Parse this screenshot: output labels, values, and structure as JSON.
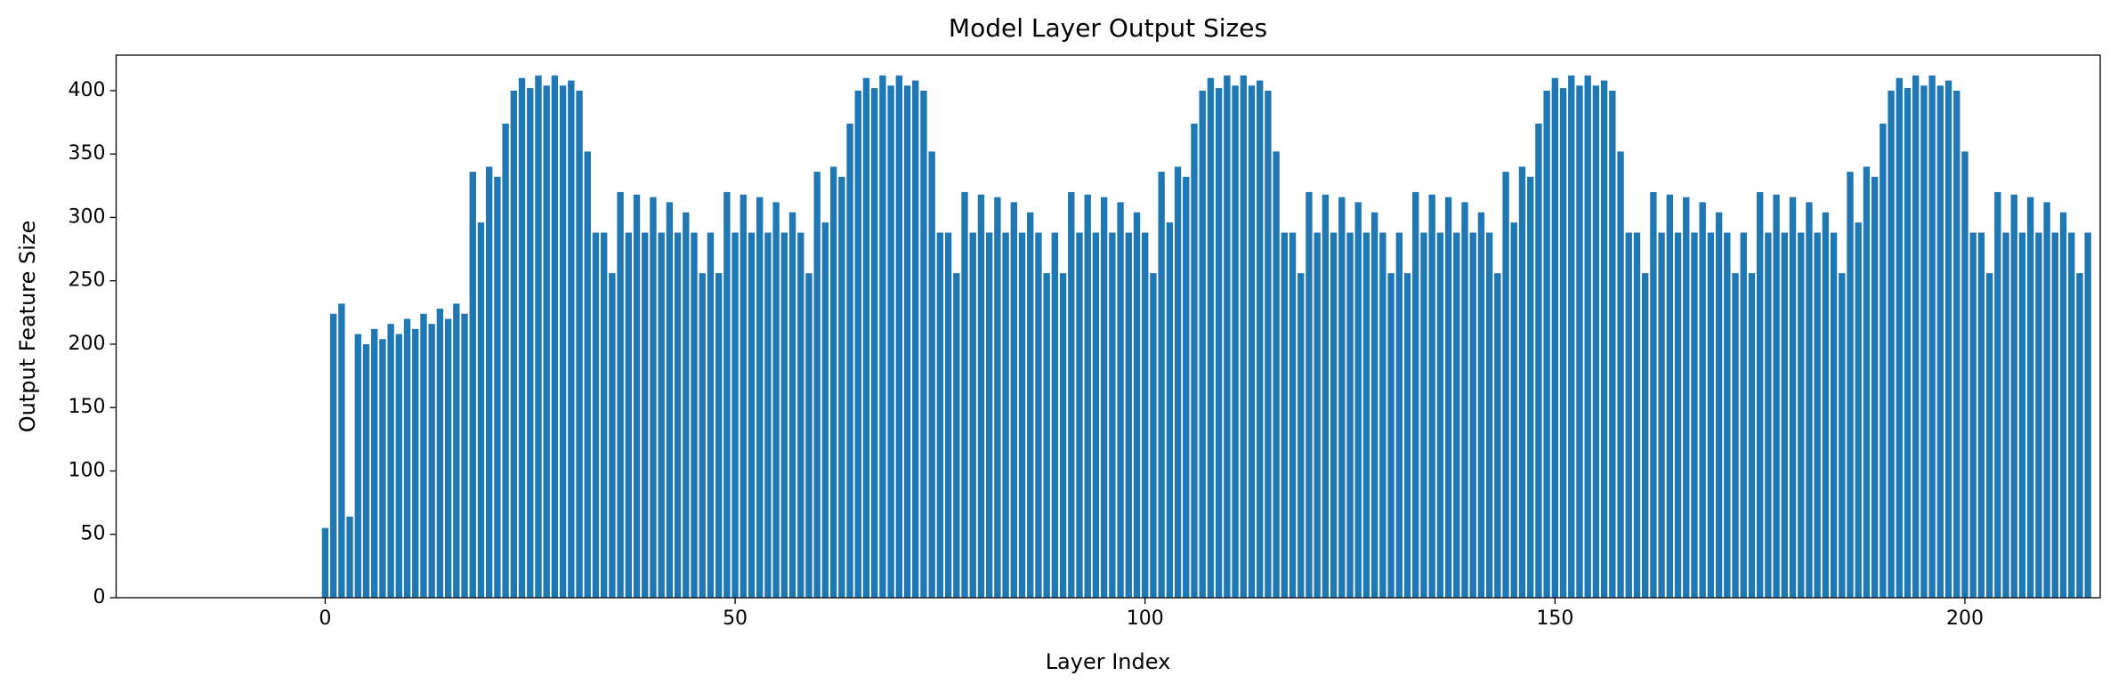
{
  "chart_data": {
    "type": "bar",
    "title": "Model Layer Output Sizes",
    "x_label": "Layer Index",
    "y_label": "Output Feature Size",
    "color": "#1f77b4",
    "x": [
      0,
      1,
      2,
      3,
      4,
      5,
      6,
      7,
      8,
      9,
      10,
      11,
      12,
      13,
      14,
      15,
      16,
      17,
      18,
      19,
      20,
      21,
      22,
      23,
      24,
      25,
      26,
      27,
      28,
      29,
      30,
      31,
      32,
      33,
      34,
      35,
      36,
      37,
      38,
      39,
      40,
      41,
      42,
      43,
      44,
      45,
      46,
      47,
      48,
      49,
      50,
      51,
      52,
      53,
      54,
      55,
      56,
      57,
      58,
      59,
      60,
      61,
      62,
      63,
      64,
      65,
      66,
      67,
      68,
      69,
      70,
      71,
      72,
      73,
      74,
      75,
      76,
      77,
      78,
      79,
      80,
      81,
      82,
      83,
      84,
      85,
      86,
      87,
      88,
      89,
      90,
      91,
      92,
      93,
      94,
      95,
      96,
      97,
      98,
      99,
      100,
      101,
      102,
      103,
      104,
      105,
      106,
      107,
      108,
      109,
      110,
      111,
      112,
      113,
      114,
      115,
      116,
      117,
      118,
      119,
      120,
      121,
      122,
      123,
      124,
      125,
      126,
      127,
      128,
      129,
      130,
      131,
      132,
      133,
      134,
      135,
      136,
      137,
      138,
      139,
      140,
      141,
      142,
      143,
      144,
      145,
      146,
      147,
      148,
      149,
      150,
      151,
      152,
      153,
      154,
      155,
      156,
      157,
      158,
      159,
      160,
      161,
      162,
      163,
      164,
      165,
      166,
      167,
      168,
      169,
      170,
      171,
      172,
      173,
      174,
      175,
      176,
      177,
      178,
      179,
      180,
      181,
      182,
      183,
      184,
      185,
      186,
      187,
      188,
      189,
      190,
      191,
      192,
      193,
      194,
      195,
      196,
      197,
      198,
      199,
      200,
      201,
      202,
      203,
      204,
      205,
      206,
      207,
      208,
      209,
      210,
      211,
      212,
      213,
      214,
      215
    ],
    "values": [
      55,
      224,
      232,
      64,
      208,
      200,
      212,
      204,
      216,
      208,
      220,
      212,
      224,
      216,
      228,
      220,
      232,
      224,
      336,
      296,
      340,
      332,
      374,
      400,
      410,
      402,
      412,
      404,
      412,
      404,
      408,
      400,
      352,
      288,
      288,
      256,
      320,
      288,
      318,
      288,
      316,
      288,
      312,
      288,
      304,
      288,
      256,
      288,
      256,
      320,
      288,
      318,
      288,
      316,
      288,
      312,
      288,
      304,
      288,
      256,
      336,
      296,
      340,
      332,
      374,
      400,
      410,
      402,
      412,
      404,
      412,
      404,
      408,
      400,
      352,
      288,
      288,
      256,
      320,
      288,
      318,
      288,
      316,
      288,
      312,
      288,
      304,
      288,
      256,
      288,
      256,
      320,
      288,
      318,
      288,
      316,
      288,
      312,
      288,
      304,
      288,
      256,
      336,
      296,
      340,
      332,
      374,
      400,
      410,
      402,
      412,
      404,
      412,
      404,
      408,
      400,
      352,
      288,
      288,
      256,
      320,
      288,
      318,
      288,
      316,
      288,
      312,
      288,
      304,
      288,
      256,
      288,
      256,
      320,
      288,
      318,
      288,
      316,
      288,
      312,
      288,
      304,
      288,
      256,
      336,
      296,
      340,
      332,
      374,
      400,
      410,
      402,
      412,
      404,
      412,
      404,
      408,
      400,
      352,
      288,
      288,
      256,
      320,
      288,
      318,
      288,
      316,
      288,
      312,
      288,
      304,
      288,
      256,
      288,
      256,
      320,
      288,
      318,
      288,
      316,
      288,
      312,
      288,
      304,
      288,
      256,
      336,
      296,
      340,
      332,
      374,
      400,
      410,
      402,
      412,
      404,
      412,
      404,
      408,
      400,
      352,
      288,
      288,
      256,
      320,
      288,
      318,
      288,
      316,
      288,
      312,
      288,
      304,
      288,
      256,
      288
    ],
    "xlim": [
      -25.5,
      216.5
    ],
    "xticks": [
      0,
      50,
      100,
      150,
      200
    ],
    "ylim": [
      0,
      428
    ],
    "yticks": [
      0,
      50,
      100,
      150,
      200,
      250,
      300,
      350,
      400
    ],
    "grid": false
  }
}
